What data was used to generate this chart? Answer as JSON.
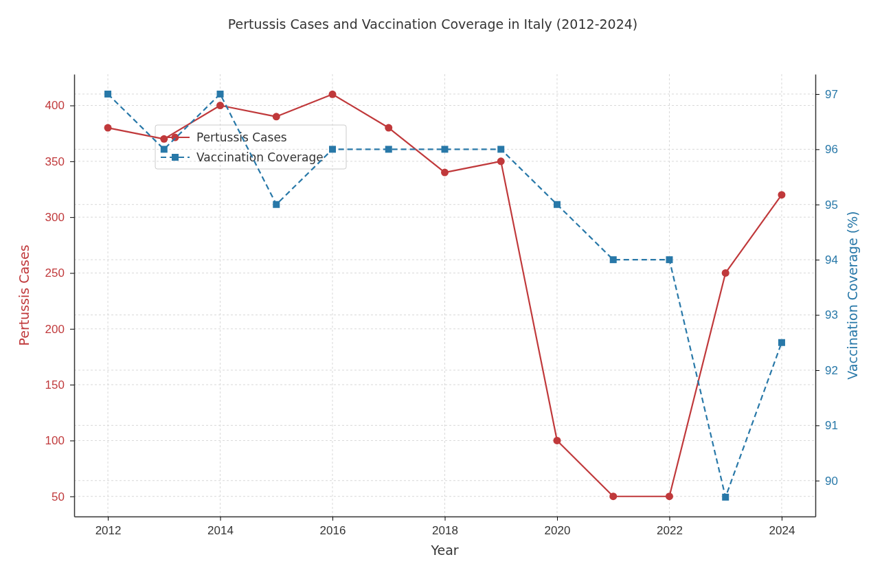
{
  "chart_data": {
    "type": "line",
    "title": "Pertussis Cases and Vaccination Coverage in Italy (2012-2024)",
    "xlabel": "Year",
    "ylabel": "Pertussis Cases",
    "y2label": "Vaccination Coverage (%)",
    "x": [
      2012,
      2013,
      2014,
      2015,
      2016,
      2017,
      2018,
      2019,
      2020,
      2021,
      2022,
      2023,
      2024
    ],
    "series": [
      {
        "name": "Pertussis Cases",
        "color": "#c0393b",
        "values": [
          380,
          370,
          400,
          390,
          410,
          380,
          340,
          350,
          100,
          50,
          50,
          250,
          320
        ],
        "marker": "circle",
        "line_style": "solid"
      },
      {
        "name": "Vaccination Coverage",
        "color": "#2878a8",
        "values": [
          97,
          96,
          97,
          95,
          96,
          96,
          96,
          96,
          95,
          94,
          94,
          89.7,
          92.5
        ],
        "axis": "y2",
        "marker": "square",
        "line_style": "dashed"
      }
    ],
    "xlim": [
      2011.4,
      2024.6
    ],
    "xticks": [
      2012,
      2014,
      2016,
      2018,
      2020,
      2022,
      2024
    ],
    "ylim": [
      32,
      428
    ],
    "yticks": [
      50,
      100,
      150,
      200,
      250,
      300,
      350,
      400
    ],
    "y2lim": [
      89.35,
      97.36
    ],
    "y2ticks": [
      90,
      91,
      92,
      93,
      94,
      95,
      96,
      97
    ],
    "grid": true,
    "legend": "top left"
  }
}
